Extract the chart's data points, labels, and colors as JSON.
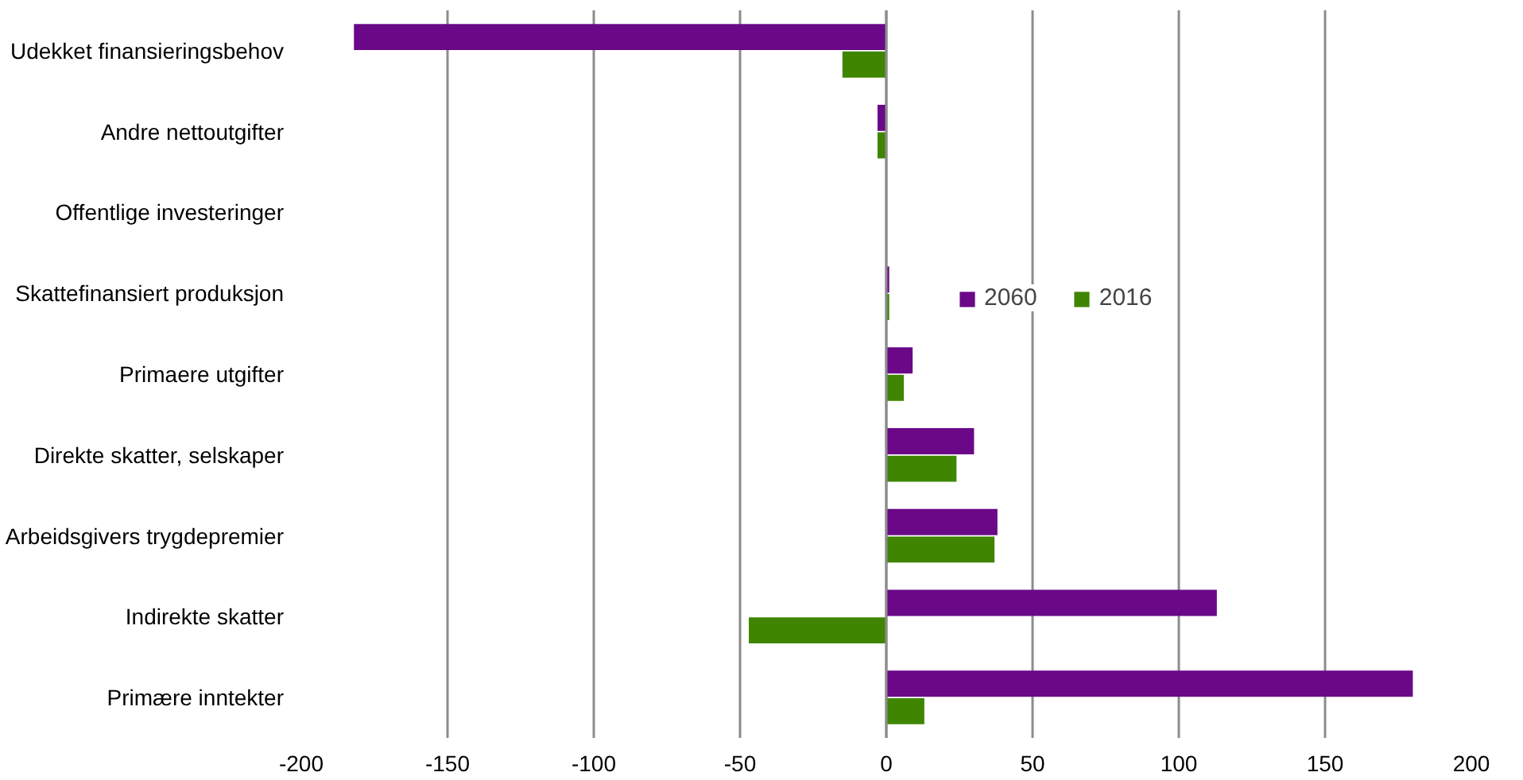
{
  "chart_data": {
    "type": "bar",
    "orientation": "horizontal",
    "categories": [
      "Udekket finansieringsbehov",
      "Andre nettoutgifter",
      "Offentlige investeringer",
      "Skattefinansiert produksjon",
      "Primaere utgifter",
      "Direkte skatter, selskaper",
      "Arbeidsgivers trygdepremier",
      "Indirekte skatter",
      "Primære inntekter"
    ],
    "series": [
      {
        "name": "2060",
        "color": "#6a0888",
        "values": [
          -182,
          -3,
          0,
          1,
          9,
          30,
          38,
          113,
          180
        ]
      },
      {
        "name": "2016",
        "color": "#3f8500",
        "values": [
          -15,
          -3,
          0,
          1,
          6,
          24,
          37,
          -47,
          13
        ]
      }
    ],
    "xlim": [
      -200,
      200
    ],
    "xticks": [
      -200,
      -150,
      -100,
      -50,
      0,
      50,
      100,
      150,
      200
    ],
    "grid": "x",
    "legend": "right"
  }
}
